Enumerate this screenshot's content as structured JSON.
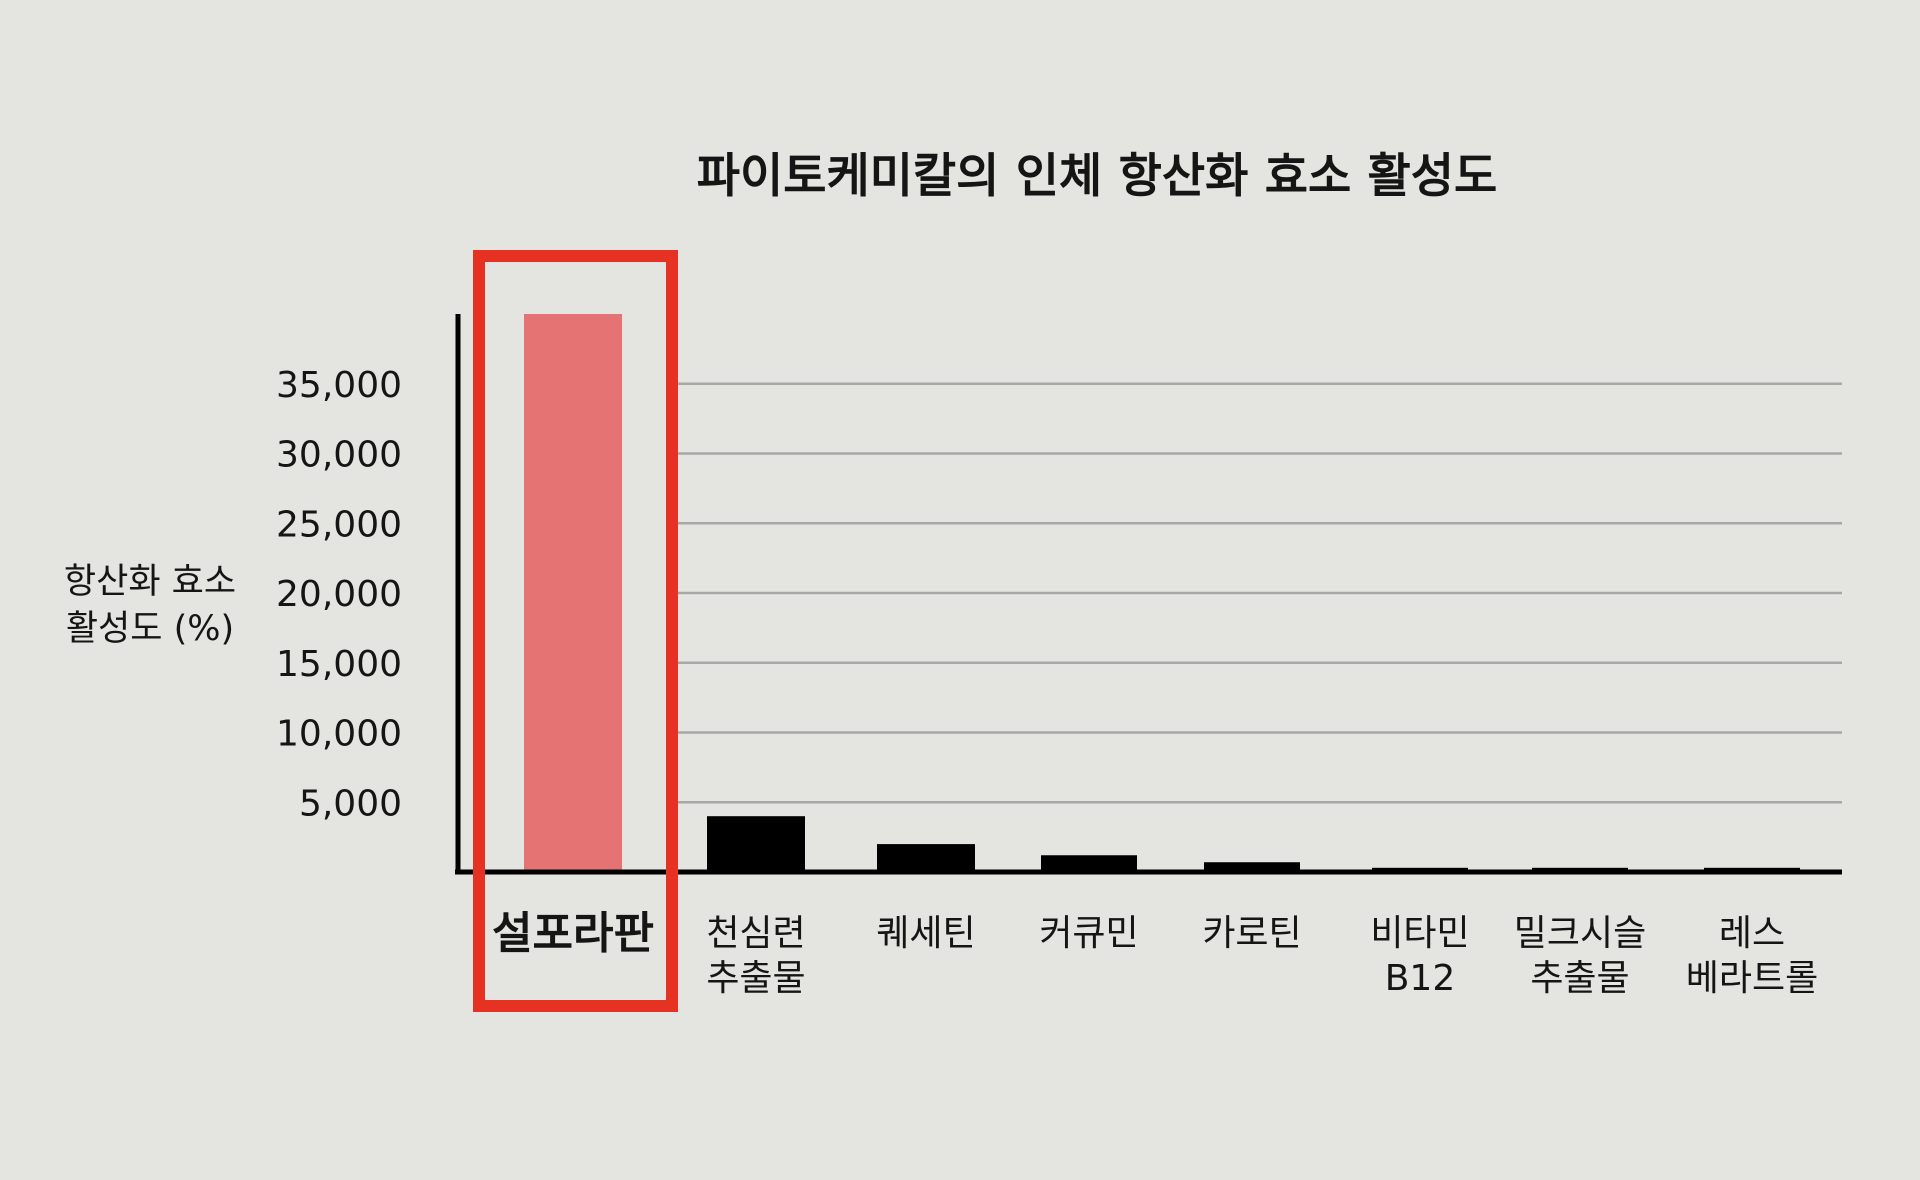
{
  "chart_data": {
    "type": "bar",
    "title": "파이토케미칼의 인체 항산화 효소 활성도",
    "ylabel": "항산화 효소\n활성도 (%)",
    "xlabel": "",
    "categories": [
      "설포라판",
      "천심련\n추출물",
      "퀘세틴",
      "커큐민",
      "카로틴",
      "비타민\nB12",
      "밀크시슬\n추출물",
      "레스\n베라트롤"
    ],
    "values": [
      40000,
      4000,
      2000,
      1200,
      700,
      300,
      300,
      300
    ],
    "ylim": [
      0,
      40000
    ],
    "yticks": [
      5000,
      10000,
      15000,
      20000,
      25000,
      30000,
      35000
    ],
    "ytick_labels": [
      "5,000",
      "10,000",
      "15,000",
      "20,000",
      "25,000",
      "30,000",
      "35,000"
    ],
    "grid": true,
    "highlight_index": 0,
    "colors": {
      "background": "#e4e4e0",
      "bar": "#000000",
      "highlight_bar": "#e57373",
      "highlight_box": "#e53222",
      "grid": "#a8a8a8",
      "axis": "#000000",
      "text": "#151515"
    }
  }
}
